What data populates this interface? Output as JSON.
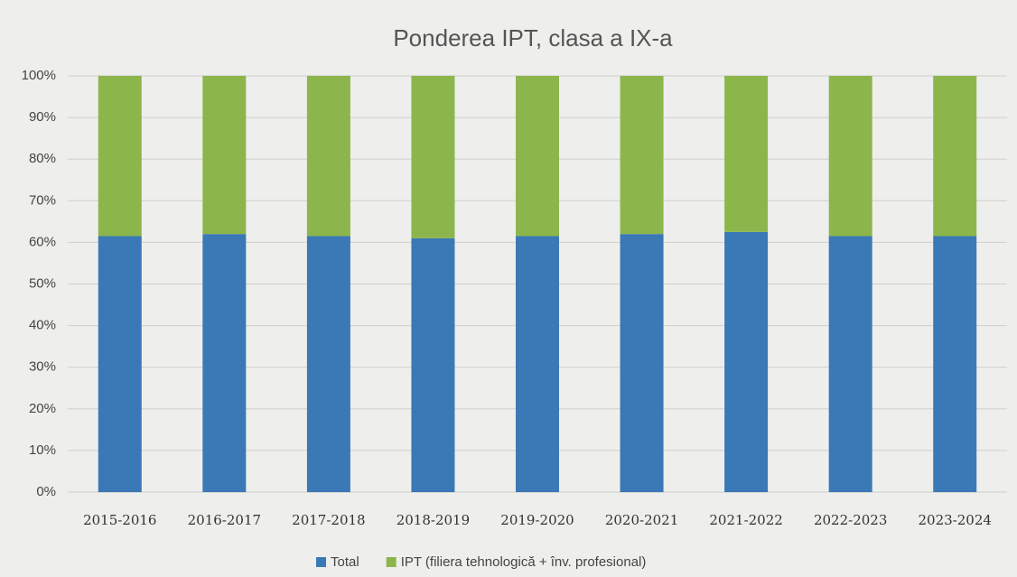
{
  "chart_data": {
    "type": "stacked_bar",
    "title": "Ponderea IPT, clasa a IX-a",
    "categories": [
      "2015-2016",
      "2016-2017",
      "2017-2018",
      "2018-2019",
      "2019-2020",
      "2020-2021",
      "2021-2022",
      "2022-2023",
      "2023-2024"
    ],
    "series": [
      {
        "name": "Total",
        "color": "#3b78b6",
        "values": [
          61.5,
          62,
          61.5,
          61,
          61.5,
          62,
          62.5,
          61.5,
          61.5
        ]
      },
      {
        "name": "IPT (filiera tehnologică + înv. profesional)",
        "color": "#8cb64c",
        "values": [
          38.5,
          38,
          38.5,
          39,
          38.5,
          38,
          37.5,
          38.5,
          38.5
        ]
      }
    ],
    "ylim": [
      0,
      100
    ],
    "yticks": [
      {
        "value": 0,
        "label": "0%"
      },
      {
        "value": 10,
        "label": "10%"
      },
      {
        "value": 20,
        "label": "20%"
      },
      {
        "value": 30,
        "label": "30%"
      },
      {
        "value": 40,
        "label": "40%"
      },
      {
        "value": 50,
        "label": "50%"
      },
      {
        "value": 60,
        "label": "60%"
      },
      {
        "value": 70,
        "label": "70%"
      },
      {
        "value": 80,
        "label": "80%"
      },
      {
        "value": 90,
        "label": "90%"
      },
      {
        "value": 100,
        "label": "100%"
      }
    ],
    "grid": true
  }
}
